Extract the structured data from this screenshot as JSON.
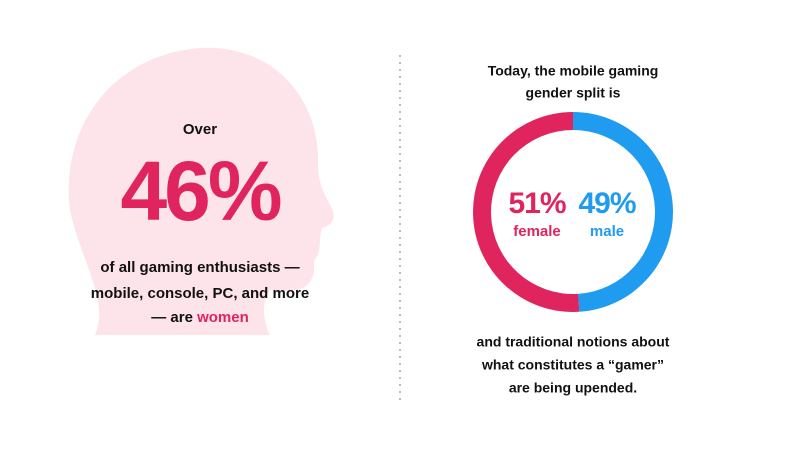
{
  "left": {
    "lead": "Over",
    "stat": "46%",
    "lines": [
      "of all gaming enthusiasts —",
      "mobile, console, PC, and more"
    ],
    "last_line": "— are ",
    "highlight": "women"
  },
  "intro": [
    "Today, the mobile gaming",
    "gender split is"
  ],
  "chart_data": {
    "type": "donut",
    "categories": [
      "female",
      "male"
    ],
    "values": [
      51,
      49
    ],
    "value_labels": [
      "51%",
      "49%"
    ],
    "colors": [
      "#e0245e",
      "#1f9bf0"
    ]
  },
  "outro": [
    "and traditional notions about",
    "what constitutes a “gamer”",
    "are being upended."
  ]
}
